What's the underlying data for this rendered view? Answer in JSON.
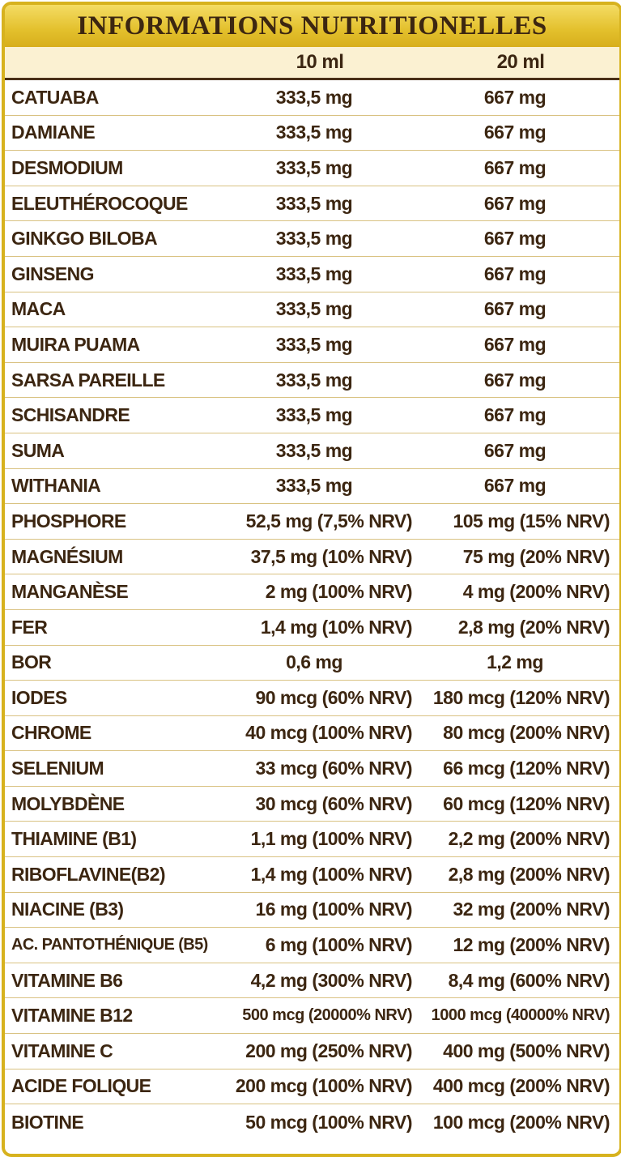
{
  "title": "INFORMATIONS NUTRITIONELLES",
  "columns": {
    "col1": "10 ml",
    "col2": "20 ml"
  },
  "rows": [
    {
      "name": "CATUABA",
      "v10": "333,5 mg",
      "v20": "667 mg"
    },
    {
      "name": "DAMIANE",
      "v10": "333,5 mg",
      "v20": "667 mg"
    },
    {
      "name": "DESMODIUM",
      "v10": "333,5 mg",
      "v20": "667 mg"
    },
    {
      "name": "ELEUTHÉROCOQUE",
      "v10": "333,5 mg",
      "v20": "667 mg"
    },
    {
      "name": "GINKGO BILOBA",
      "v10": "333,5 mg",
      "v20": "667 mg"
    },
    {
      "name": "GINSENG",
      "v10": "333,5 mg",
      "v20": "667 mg"
    },
    {
      "name": "MACA",
      "v10": "333,5 mg",
      "v20": "667 mg"
    },
    {
      "name": "MUIRA PUAMA",
      "v10": "333,5 mg",
      "v20": "667 mg"
    },
    {
      "name": "SARSA PAREILLE",
      "v10": "333,5 mg",
      "v20": "667 mg"
    },
    {
      "name": "SCHISANDRE",
      "v10": "333,5 mg",
      "v20": "667 mg"
    },
    {
      "name": "SUMA",
      "v10": "333,5 mg",
      "v20": "667 mg"
    },
    {
      "name": "WITHANIA",
      "v10": "333,5 mg",
      "v20": "667 mg"
    },
    {
      "name": "PHOSPHORE",
      "v10": "52,5 mg (7,5% NRV)",
      "v20": "105 mg (15% NRV)"
    },
    {
      "name": "MAGNÉSIUM",
      "v10": "37,5 mg (10% NRV)",
      "v20": "75 mg (20% NRV)"
    },
    {
      "name": "MANGANÈSE",
      "v10": "2 mg (100% NRV)",
      "v20": "4 mg (200% NRV)"
    },
    {
      "name": "FER",
      "v10": "1,4 mg (10% NRV)",
      "v20": "2,8 mg (20% NRV)"
    },
    {
      "name": "BOR",
      "v10": "0,6 mg",
      "v20": "1,2 mg"
    },
    {
      "name": "IODES",
      "v10": "90 mcg (60% NRV)",
      "v20": "180 mcg (120% NRV)"
    },
    {
      "name": "CHROME",
      "v10": "40 mcg (100% NRV)",
      "v20": "80 mcg (200% NRV)"
    },
    {
      "name": "SELENIUM",
      "v10": "33 mcg (60% NRV)",
      "v20": "66 mcg (120% NRV)"
    },
    {
      "name": "MOLYBDÈNE",
      "v10": "30 mcg (60% NRV)",
      "v20": "60 mcg (120% NRV)"
    },
    {
      "name": "THIAMINE (B1)",
      "v10": "1,1 mg (100% NRV)",
      "v20": "2,2 mg (200% NRV)"
    },
    {
      "name": "RIBOFLAVINE(B2)",
      "v10": "1,4 mg (100% NRV)",
      "v20": "2,8 mg (200% NRV)"
    },
    {
      "name": "NIACINE (B3)",
      "v10": "16 mg (100% NRV)",
      "v20": "32 mg (200% NRV)"
    },
    {
      "name": "AC. PANTOTHÉNIQUE (B5)",
      "v10": "6 mg (100% NRV)",
      "v20": "12 mg (200% NRV)"
    },
    {
      "name": "VITAMINE B6",
      "v10": "4,2 mg (300% NRV)",
      "v20": "8,4 mg (600% NRV)"
    },
    {
      "name": "VITAMINE B12",
      "v10": "500 mcg (20000% NRV)",
      "v20": "1000 mcg (40000% NRV)"
    },
    {
      "name": "VITAMINE C",
      "v10": "200 mg (250% NRV)",
      "v20": "400 mg (500% NRV)"
    },
    {
      "name": "ACIDE FOLIQUE",
      "v10": "200 mcg (100% NRV)",
      "v20": "400 mcg (200% NRV)"
    },
    {
      "name": "BIOTINE",
      "v10": "50 mcg (100% NRV)",
      "v20": "100 mcg (200% NRV)"
    }
  ],
  "colors": {
    "frame": "#d7b21e",
    "title_band": "#e3c02c",
    "header_band": "#fbf1d2",
    "text": "#3c2611",
    "row_divider": "#d9c282"
  }
}
